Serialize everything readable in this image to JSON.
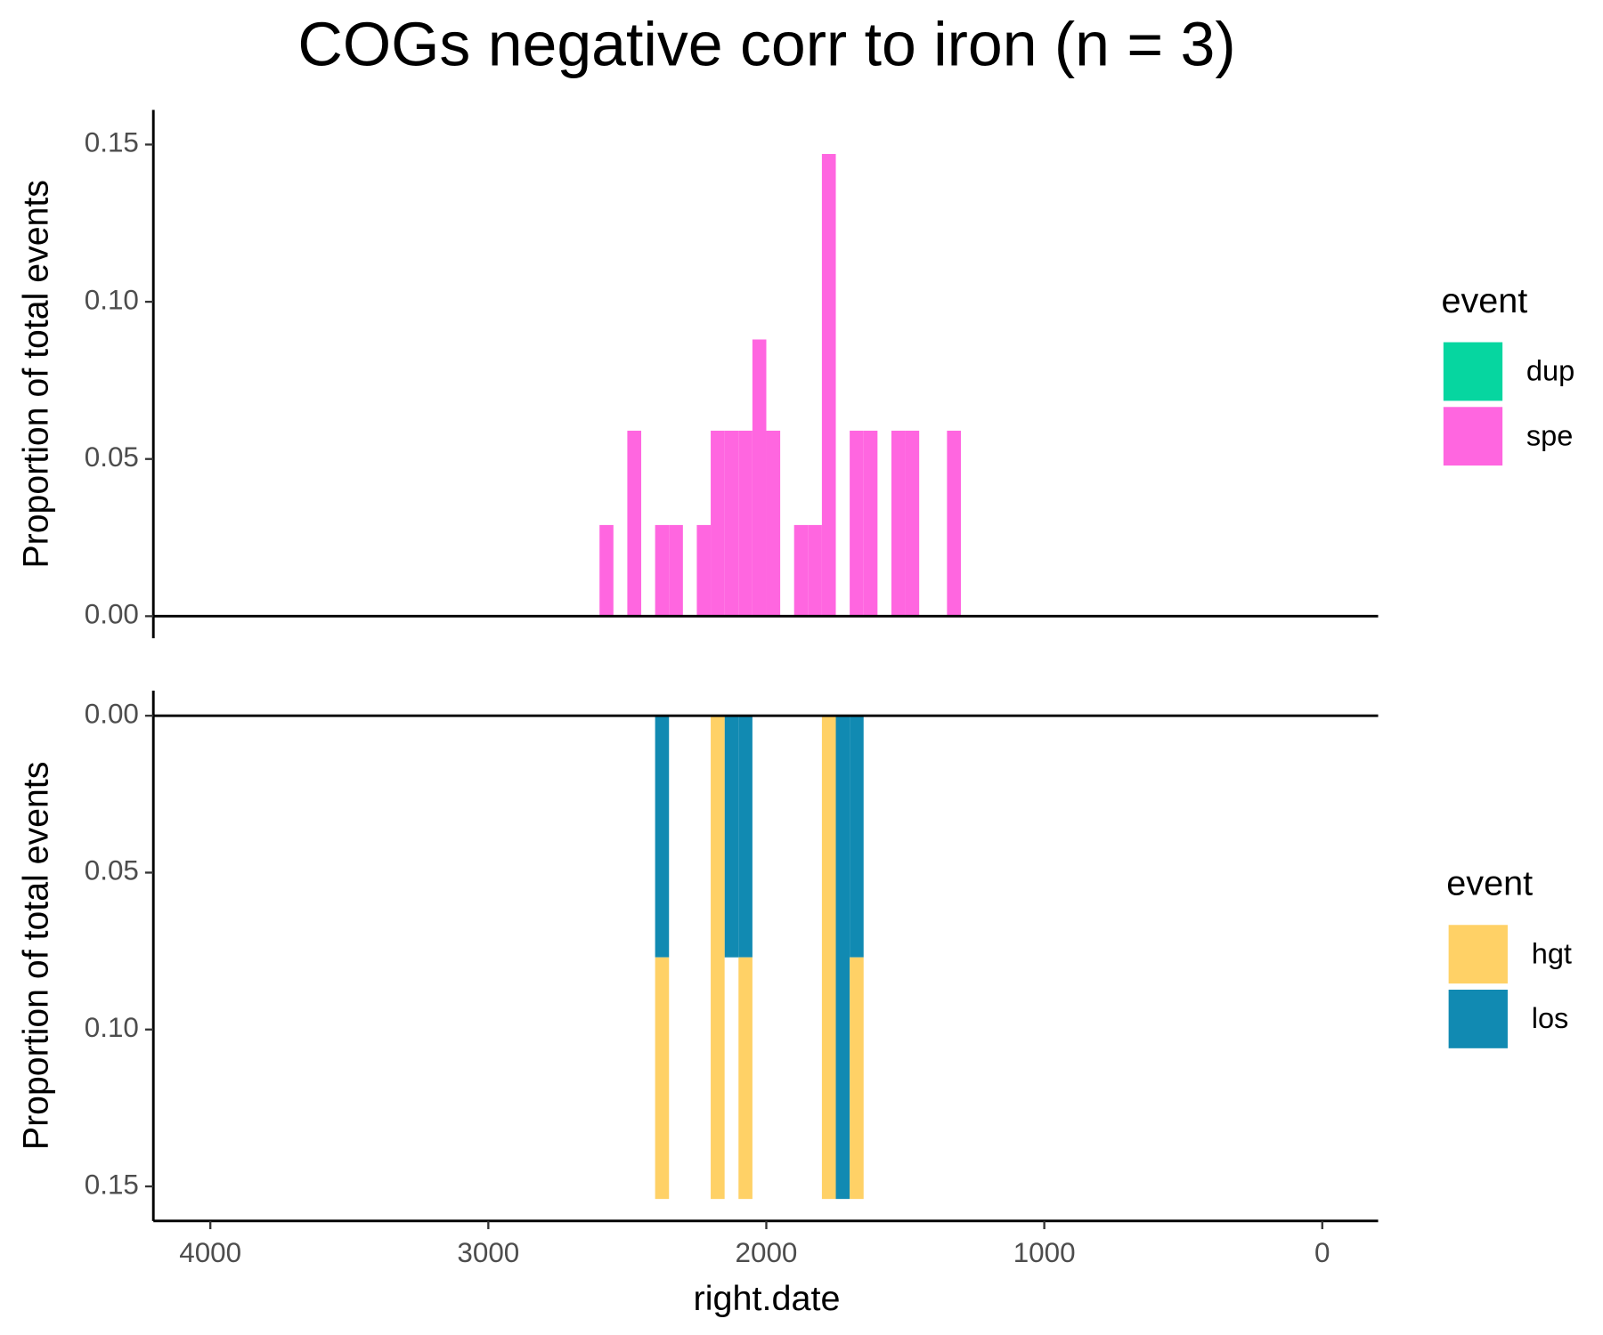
{
  "chart_data": [
    {
      "type": "histogram",
      "title": "COGs negative corr to iron (n = 3)",
      "ylabel": "Proportion of total events",
      "legend_title": "event",
      "stacked": true,
      "bins": [
        1300,
        1350,
        1400,
        1450,
        1500,
        1550,
        1600,
        1650,
        1700,
        1750,
        1800,
        1850,
        1900,
        1950,
        2000,
        2050,
        2100,
        2150,
        2200,
        2250,
        2300,
        2350,
        2400,
        2450,
        2500,
        2550,
        2600
      ],
      "series": [
        {
          "name": "dup",
          "color": "#06d6a0",
          "values": [
            0,
            0,
            0,
            0,
            0,
            0,
            0,
            0,
            0,
            0,
            0,
            0,
            0,
            0,
            0,
            0,
            0,
            0,
            0,
            0,
            0,
            0,
            0,
            0,
            0,
            0
          ]
        },
        {
          "name": "spe",
          "color": "#ff66e0",
          "values": [
            0.059,
            0,
            0,
            0.059,
            0.059,
            0,
            0.059,
            0.059,
            0,
            0.147,
            0.029,
            0.029,
            0,
            0.059,
            0.088,
            0.059,
            0.059,
            0.059,
            0.029,
            0,
            0.029,
            0.029,
            0,
            0.059,
            0,
            0.029
          ]
        }
      ],
      "xlim": [
        4205,
        -201
      ],
      "ylim": [
        -0.007,
        0.161
      ],
      "yticks": [
        {
          "value": 0,
          "label": "0.00"
        },
        {
          "value": 0.05,
          "label": "0.05"
        },
        {
          "value": 0.1,
          "label": "0.10"
        },
        {
          "value": 0.15,
          "label": "0.15"
        }
      ]
    },
    {
      "type": "histogram",
      "ylabel": "Proportion of total events",
      "xlabel": "right.date",
      "legend_title": "event",
      "stacked": true,
      "bins": [
        1650,
        1700,
        1750,
        1800,
        1850,
        1900,
        1950,
        2000,
        2050,
        2100,
        2150,
        2200,
        2250,
        2300,
        2350,
        2400
      ],
      "series": [
        {
          "name": "hgt",
          "color": "#ffd166",
          "values": [
            0.077,
            0,
            0.154,
            0,
            0,
            0,
            0,
            0,
            0.077,
            0,
            0.154,
            0,
            0,
            0,
            0.077
          ]
        },
        {
          "name": "los",
          "color": "#118ab2",
          "values": [
            0.077,
            0.154,
            0,
            0,
            0,
            0,
            0,
            0,
            0.077,
            0.077,
            0,
            0,
            0,
            0,
            0.077
          ]
        }
      ],
      "xlim": [
        4205,
        -201
      ],
      "ylim": [
        0.161,
        -0.008
      ],
      "xticks": [
        4000,
        3000,
        2000,
        1000,
        0
      ],
      "yticks": [
        {
          "value": 0,
          "label": "0.00"
        },
        {
          "value": 0.05,
          "label": "0.05"
        },
        {
          "value": 0.1,
          "label": "0.10"
        },
        {
          "value": 0.15,
          "label": "0.15"
        }
      ]
    }
  ]
}
